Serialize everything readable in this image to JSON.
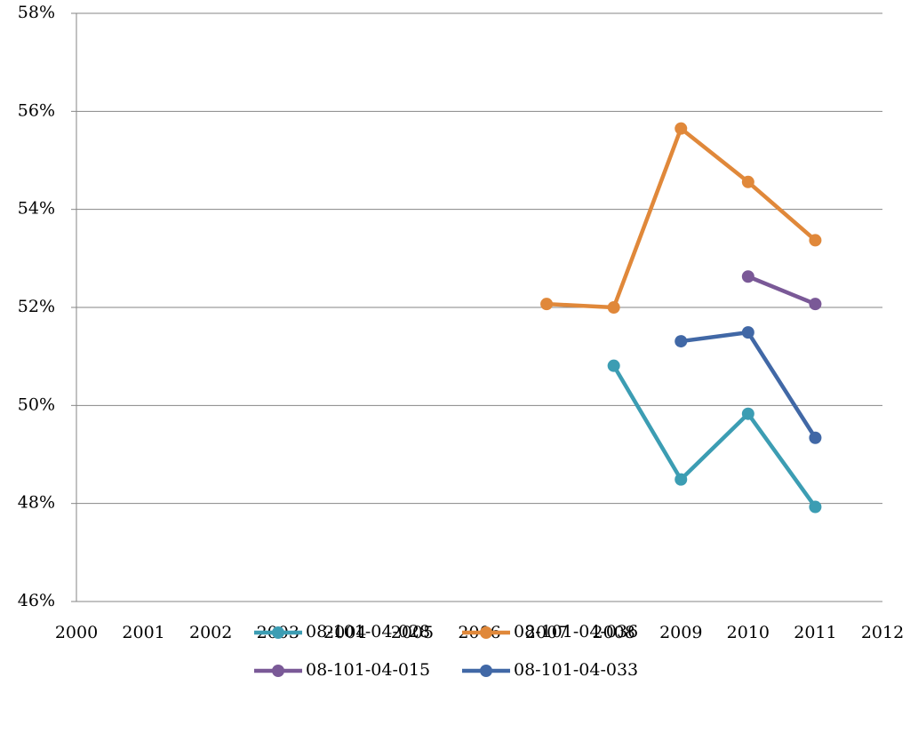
{
  "chart_data": {
    "type": "line",
    "x": [
      2007,
      2008,
      2009,
      2010,
      2011
    ],
    "xlim": [
      2000,
      2012
    ],
    "xticks": [
      2000,
      2001,
      2002,
      2003,
      2004,
      2005,
      2006,
      2007,
      2008,
      2009,
      2010,
      2011,
      2012
    ],
    "ylim": [
      46,
      58
    ],
    "yticks": [
      {
        "value": 46,
        "label": "46%"
      },
      {
        "value": 48,
        "label": "48%"
      },
      {
        "value": 50,
        "label": "50%"
      },
      {
        "value": 52,
        "label": "52%"
      },
      {
        "value": 54,
        "label": "54%"
      },
      {
        "value": 56,
        "label": "56%"
      },
      {
        "value": 58,
        "label": "58%"
      }
    ],
    "grid": true,
    "legend": "bottom",
    "series": [
      {
        "name": "08-101-04-028",
        "color": "#3c9db3",
        "values": [
          null,
          50.81,
          48.49,
          49.83,
          47.93
        ]
      },
      {
        "name": "08-101-04-036",
        "color": "#e0883a",
        "values": [
          52.07,
          52.0,
          55.65,
          54.56,
          53.37
        ]
      },
      {
        "name": "08-101-04-015",
        "color": "#7a5997",
        "values": [
          null,
          null,
          null,
          52.63,
          52.07
        ]
      },
      {
        "name": "08-101-04-033",
        "color": "#4168a6",
        "values": [
          null,
          null,
          51.31,
          51.49,
          49.34
        ]
      }
    ]
  }
}
